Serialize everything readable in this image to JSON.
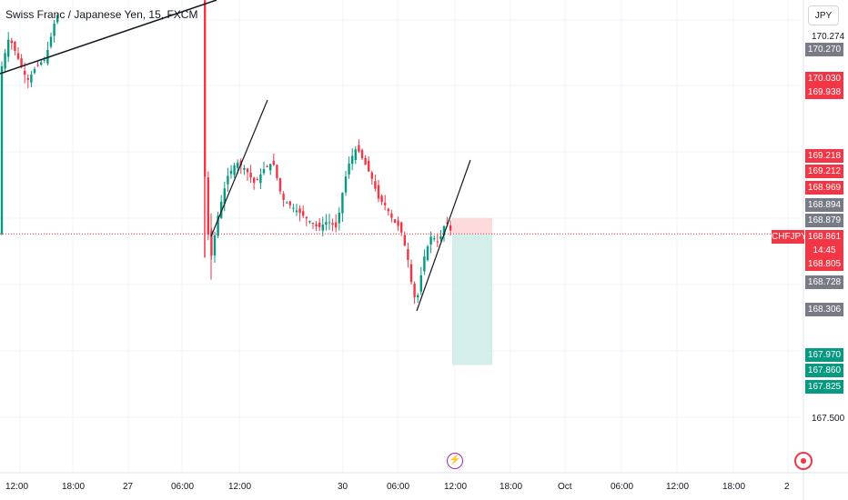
{
  "header": {
    "title": "Swiss Franc / Japanese Yen, 15, FXCM",
    "currency_button": "JPY"
  },
  "colors": {
    "up": "#089981",
    "down": "#f23645",
    "grid": "#f0f3fa",
    "stop_zone": "#fdd3d6",
    "target_zone": "#cdebe6"
  },
  "y_axis": {
    "plain_labels": [
      "170.274",
      "167.500"
    ],
    "badges": [
      {
        "text": "170.270",
        "color": "#787b86"
      },
      {
        "text": "170.030",
        "color": "#f23645"
      },
      {
        "text": "169.938",
        "color": "#f23645"
      },
      {
        "text": "169.218",
        "color": "#f23645"
      },
      {
        "text": "169.212",
        "color": "#f23645"
      },
      {
        "text": "168.969",
        "color": "#f23645"
      },
      {
        "text": "168.894",
        "color": "#787b86"
      },
      {
        "text": "168.879",
        "color": "#787b86"
      },
      {
        "text": "168.861",
        "color": "#f23645"
      },
      {
        "text": "14:45",
        "color": "#f23645"
      },
      {
        "text": "168.805",
        "color": "#f23645"
      },
      {
        "text": "168.728",
        "color": "#787b86"
      },
      {
        "text": "168.306",
        "color": "#787b86"
      },
      {
        "text": "167.970",
        "color": "#089981"
      },
      {
        "text": "167.860",
        "color": "#089981"
      },
      {
        "text": "167.825",
        "color": "#089981"
      }
    ]
  },
  "symbol_tag": "CHFJPY",
  "x_axis": {
    "labels": [
      "12:00",
      "18:00",
      "27",
      "06:00",
      "12:00",
      "30",
      "06:00",
      "12:00",
      "18:00",
      "Oct",
      "06:00",
      "12:00",
      "18:00",
      "2"
    ]
  },
  "chart_data": {
    "type": "candlestick",
    "title": "Swiss Franc / Japanese Yen, 15, FXCM",
    "symbol": "CHFJPY",
    "last_price": 168.861,
    "countdown": "14:45",
    "stop_price": 168.969,
    "target_price": 167.97,
    "ylim": [
      167.3,
      170.45
    ],
    "y_ticks": [
      170.274,
      167.5
    ],
    "x_ticks": [
      "12:00",
      "18:00",
      "27",
      "06:00",
      "12:00",
      "30",
      "06:00",
      "12:00",
      "18:00",
      "Oct",
      "06:00",
      "12:00",
      "18:00",
      "2"
    ],
    "grid": true,
    "position_tool": {
      "entry": 168.861,
      "stop": 168.969,
      "target": 167.97
    }
  },
  "icons": {
    "bolt": "lightning-bolt-icon",
    "settings": "gear-icon"
  }
}
